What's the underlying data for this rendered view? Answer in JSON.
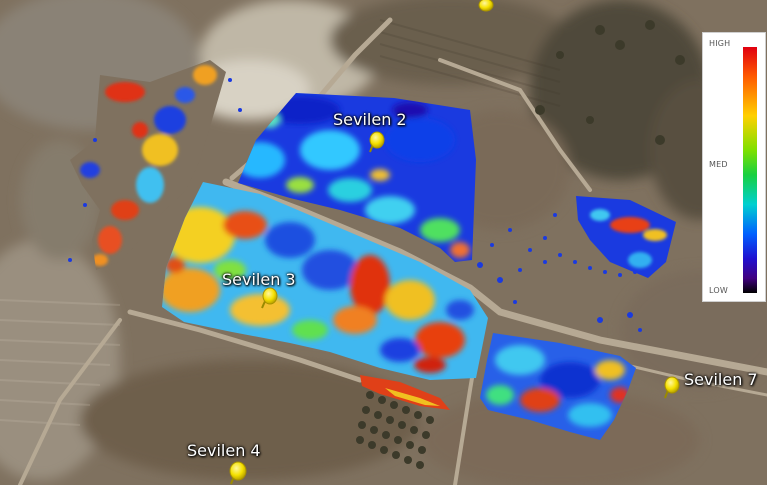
{
  "map": {
    "labels": {
      "sevilen2": "Sevilen 2",
      "sevilen3": "Sevilen 3",
      "sevilen4": "Sevilen 4",
      "sevilen7": "Sevilen 7"
    },
    "legend": {
      "high": "HIGH",
      "med": "MED",
      "low": "LOW",
      "colors": [
        "#e00010",
        "#ff5a00",
        "#ffd000",
        "#7ee000",
        "#18d040",
        "#00d0d0",
        "#0060ff",
        "#2010d0",
        "#400080",
        "#000000"
      ]
    },
    "pin_color": "#f5e100"
  }
}
